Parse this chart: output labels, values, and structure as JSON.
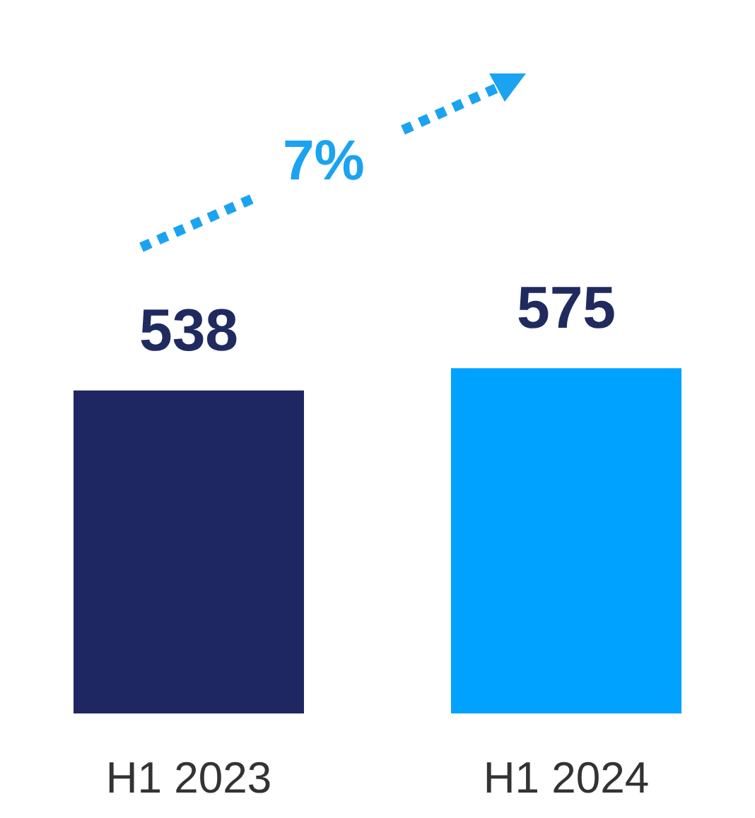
{
  "chart_data": {
    "type": "bar",
    "categories": [
      "H1 2023",
      "H1 2024"
    ],
    "values": [
      538,
      575
    ],
    "colors": [
      "#1e2761",
      "#00a2ff"
    ],
    "tick_labels": "x",
    "data_labels": true,
    "grid": false,
    "annotations": [
      "7%"
    ]
  }
}
